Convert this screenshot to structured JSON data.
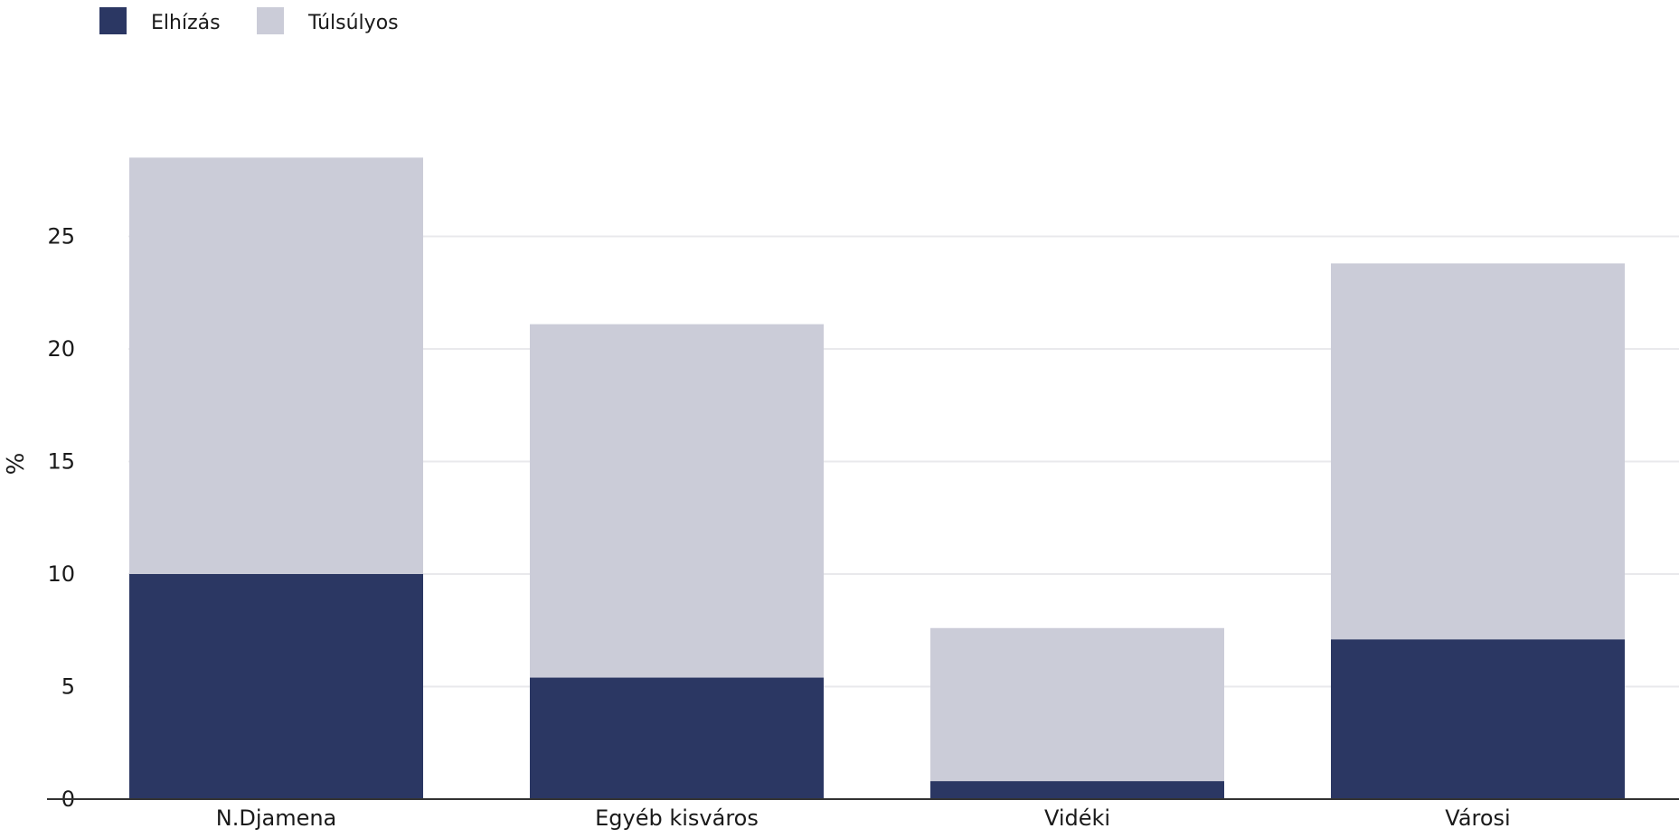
{
  "chart_data": {
    "type": "bar",
    "stacked": true,
    "categories": [
      "N.Djamena",
      "Egyéb kisváros",
      "Vidéki",
      "Városi"
    ],
    "series": [
      {
        "name": "Elhízás",
        "color": "#2b3763",
        "values": [
          10.0,
          5.4,
          0.8,
          7.1
        ]
      },
      {
        "name": "Túlsúlyos",
        "color": "#cbccd8",
        "values": [
          18.5,
          15.7,
          6.8,
          16.7
        ]
      }
    ],
    "ylabel": "%",
    "xlabel": "",
    "ylim": [
      0,
      30
    ],
    "yticks": [
      "0",
      "5",
      "10",
      "15",
      "20",
      "25"
    ],
    "grid": true,
    "legend_position": "top-left"
  }
}
